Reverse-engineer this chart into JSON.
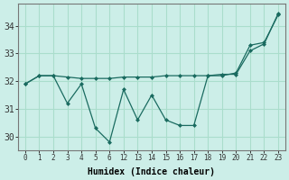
{
  "xlabel": "Humidex (Indice chaleur)",
  "background_color": "#cceee8",
  "grid_color": "#aaddcc",
  "line_color": "#1a6b60",
  "x_labels": [
    "0",
    "1",
    "2",
    "3",
    "4",
    "5",
    "6",
    "12",
    "13",
    "14",
    "15",
    "16",
    "17",
    "18",
    "19",
    "20",
    "21",
    "22",
    "23"
  ],
  "line1_y": [
    31.9,
    32.2,
    32.2,
    31.2,
    31.9,
    30.3,
    29.8,
    31.7,
    30.6,
    31.5,
    30.6,
    30.4,
    30.4,
    32.2,
    32.2,
    32.3,
    33.3,
    33.4,
    34.4
  ],
  "line2_y": [
    31.9,
    32.2,
    32.2,
    32.15,
    32.1,
    32.1,
    32.1,
    32.15,
    32.15,
    32.15,
    32.2,
    32.2,
    32.2,
    32.2,
    32.25,
    32.25,
    33.1,
    33.35,
    34.45
  ],
  "ylim": [
    29.5,
    34.8
  ],
  "yticks": [
    30,
    31,
    32,
    33,
    34
  ],
  "figsize": [
    3.2,
    2.0
  ],
  "dpi": 100
}
